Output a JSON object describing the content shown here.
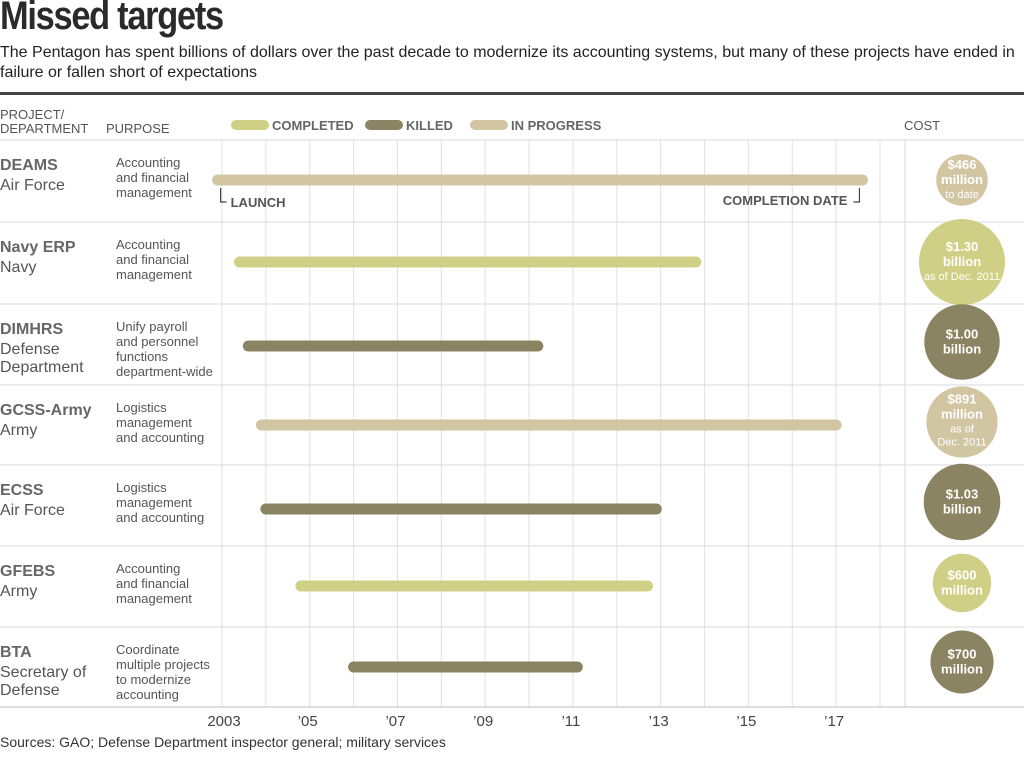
{
  "header": {
    "title": "Missed targets",
    "subtitle": "The Pentagon has spent billions of dollars over the past decade to modernize its accounting systems, but many of these projects have ended in failure or fallen short of expectations"
  },
  "columns": {
    "project": [
      "PROJECT/",
      "DEPARTMENT"
    ],
    "purpose": "PURPOSE",
    "cost": "COST"
  },
  "annotations": {
    "launch": "LAUNCH",
    "completion": "COMPLETION DATE"
  },
  "colors": {
    "completed": "#cfcf85",
    "killed": "#8b8462",
    "in_progress": "#d2c5a2"
  },
  "chart_data": {
    "type": "bar",
    "orientation": "horizontal-timeline",
    "xlim": [
      2003,
      2018
    ],
    "x_ticks": [
      {
        "value": 2003,
        "label": "2003"
      },
      {
        "value": 2005,
        "label": "’05"
      },
      {
        "value": 2007,
        "label": "’07"
      },
      {
        "value": 2009,
        "label": "’09"
      },
      {
        "value": 2011,
        "label": "’11"
      },
      {
        "value": 2013,
        "label": "’13"
      },
      {
        "value": 2015,
        "label": "’15"
      },
      {
        "value": 2017,
        "label": "’17"
      }
    ],
    "legend": [
      {
        "key": "completed",
        "label": "COMPLETED"
      },
      {
        "key": "killed",
        "label": "KILLED"
      },
      {
        "key": "in_progress",
        "label": "IN PROGRESS"
      }
    ],
    "legend_position": "top",
    "projects": [
      {
        "name": "DEAMS",
        "department": [
          "Air Force"
        ],
        "purpose": [
          "Accounting",
          "and financial",
          "management"
        ],
        "status": "in_progress",
        "start": 2002.9,
        "end": 2017.6,
        "cost_value": 466,
        "cost_lines": [
          "$466",
          "million"
        ],
        "cost_note": [
          "to date"
        ]
      },
      {
        "name": "Navy ERP",
        "department": [
          "Navy"
        ],
        "purpose": [
          "Accounting",
          "and financial",
          "management"
        ],
        "status": "completed",
        "start": 2003.4,
        "end": 2013.8,
        "cost_value": 1300,
        "cost_lines": [
          "$1.30",
          "billion"
        ],
        "cost_note": [
          "as of Dec. 2011"
        ]
      },
      {
        "name": "DIMHRS",
        "department": [
          "Defense",
          "Department"
        ],
        "purpose": [
          "Unify payroll",
          "and personnel",
          "functions",
          "department-wide"
        ],
        "status": "killed",
        "start": 2003.6,
        "end": 2010.2,
        "cost_value": 1000,
        "cost_lines": [
          "$1.00",
          "billion"
        ],
        "cost_note": []
      },
      {
        "name": "GCSS-Army",
        "department": [
          "Army"
        ],
        "purpose": [
          "Logistics",
          "management",
          "and accounting"
        ],
        "status": "in_progress",
        "start": 2003.9,
        "end": 2017.0,
        "cost_value": 891,
        "cost_lines": [
          "$891",
          "million"
        ],
        "cost_note": [
          "as of",
          "Dec. 2011"
        ]
      },
      {
        "name": "ECSS",
        "department": [
          "Air Force"
        ],
        "purpose": [
          "Logistics",
          "management",
          "and accounting"
        ],
        "status": "killed",
        "start": 2004.0,
        "end": 2012.9,
        "cost_value": 1030,
        "cost_lines": [
          "$1.03",
          "billion"
        ],
        "cost_note": []
      },
      {
        "name": "GFEBS",
        "department": [
          "Army"
        ],
        "purpose": [
          "Accounting",
          "and financial",
          "management"
        ],
        "status": "completed",
        "start": 2004.8,
        "end": 2012.7,
        "cost_value": 600,
        "cost_lines": [
          "$600",
          "million"
        ],
        "cost_note": []
      },
      {
        "name": "BTA",
        "department": [
          "Secretary of",
          "Defense"
        ],
        "purpose": [
          "Coordinate",
          "multiple projects",
          "to modernize",
          "accounting"
        ],
        "status": "killed",
        "start": 2006.0,
        "end": 2011.1,
        "cost_value": 700,
        "cost_lines": [
          "$700",
          "million"
        ],
        "cost_note": []
      }
    ]
  },
  "footer": {
    "sources": "Sources: GAO; Defense Department inspector general; military services"
  }
}
